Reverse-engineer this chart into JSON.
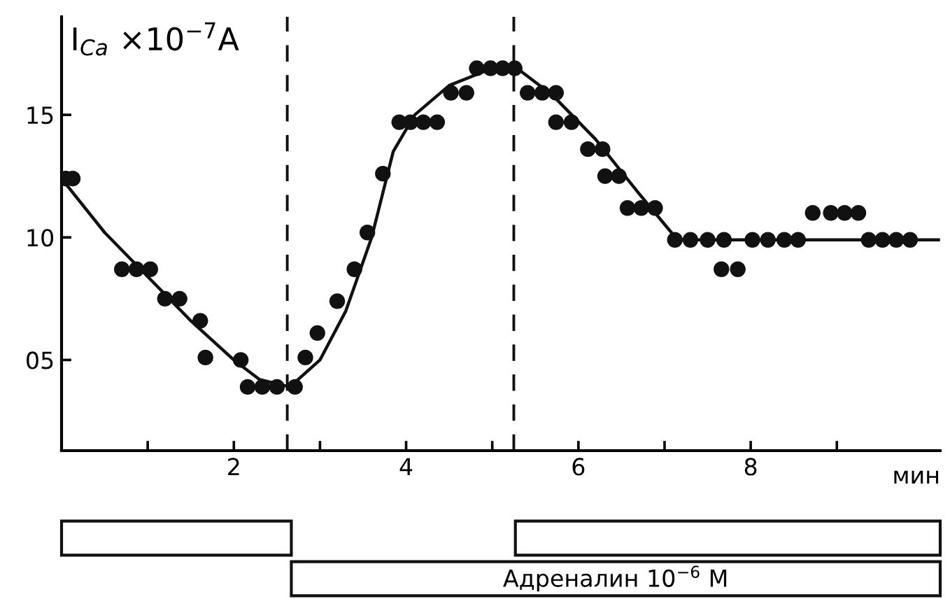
{
  "chart_data": {
    "type": "scatter",
    "ylabel": "I$_{Ca}$ ×10$^{−7}$A",
    "xlabel": "мин",
    "xlim": [
      0,
      10.2
    ],
    "ylim": [
      1.3,
      19
    ],
    "xticks": [
      {
        "value": 1,
        "label": null
      },
      2,
      {
        "value": 3,
        "label": null
      },
      4,
      {
        "value": 5,
        "label": null
      },
      6,
      {
        "value": 7,
        "label": null
      },
      8,
      {
        "value": 9,
        "label": null
      }
    ],
    "yticks": [
      {
        "value": 5,
        "label": "05"
      },
      10,
      15
    ],
    "grid": false,
    "marker": "circle",
    "series": [
      {
        "type": "scatter",
        "color": "#111111",
        "x": [
          0.05,
          0.13,
          0.7,
          0.87,
          1.03,
          1.2,
          1.37,
          1.61,
          1.67,
          2.08,
          2.16,
          2.33,
          2.5,
          2.71,
          2.83,
          2.97,
          3.2,
          3.4,
          3.55,
          3.73,
          3.92,
          4.05,
          4.2,
          4.36,
          4.52,
          4.7,
          4.82,
          4.98,
          5.12,
          5.26,
          5.41,
          5.58,
          5.74,
          5.74,
          5.92,
          6.11,
          6.28,
          6.31,
          6.47,
          6.57,
          6.73,
          6.89,
          7.12,
          7.3,
          7.5,
          7.69,
          7.66,
          7.85,
          8.02,
          8.2,
          8.39,
          8.55,
          8.72,
          8.93,
          9.09,
          9.25,
          9.37,
          9.53,
          9.69,
          9.85
        ],
        "values": [
          12.4,
          12.4,
          8.7,
          8.7,
          8.7,
          7.5,
          7.5,
          6.6,
          5.1,
          5.0,
          3.9,
          3.9,
          3.9,
          3.9,
          5.1,
          6.1,
          7.4,
          8.7,
          10.2,
          12.6,
          14.7,
          14.7,
          14.7,
          14.7,
          15.9,
          15.9,
          16.9,
          16.9,
          16.9,
          16.9,
          15.9,
          15.9,
          15.9,
          14.7,
          14.7,
          13.6,
          13.6,
          12.5,
          12.5,
          11.2,
          11.2,
          11.2,
          9.9,
          9.9,
          9.9,
          9.9,
          8.7,
          8.7,
          9.9,
          9.9,
          9.9,
          9.9,
          11.0,
          11.0,
          11.0,
          11.0,
          9.9,
          9.9,
          9.9,
          9.9
        ]
      },
      {
        "type": "line",
        "color": "#111111",
        "marker": "none",
        "line_style": "solid",
        "x": [
          0,
          0.5,
          1,
          1.5,
          2,
          2.3,
          2.65,
          3,
          3.3,
          3.6,
          3.85,
          4.1,
          4.5,
          5,
          5.25,
          5.7,
          6.2,
          6.7,
          7.15,
          10.18
        ],
        "values": [
          12.4,
          10.2,
          8.4,
          6.6,
          5.0,
          4.2,
          3.9,
          5.0,
          7.0,
          10.0,
          13.5,
          15.0,
          16.2,
          16.9,
          17.0,
          15.8,
          14.0,
          11.8,
          9.9,
          9.9
        ]
      }
    ],
    "ref_lines": [
      {
        "axis": "x",
        "value": 2.62,
        "line_style": "dashed",
        "color": "#111111"
      },
      {
        "axis": "x",
        "value": 5.25,
        "line_style": "dashed",
        "color": "#111111"
      }
    ],
    "annotations": [
      "Адреналин 10$^{−6}$ М"
    ]
  }
}
